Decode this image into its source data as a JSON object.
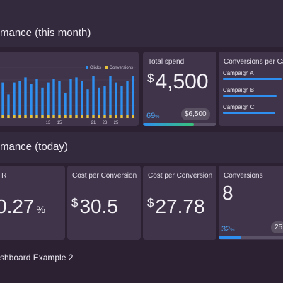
{
  "sections": {
    "month_title": "mance (this month)",
    "today_title": "mance (today)",
    "footer_title": "shboard Example 2"
  },
  "colors": {
    "clicks": "#2f8ff0",
    "conversions": "#e8c23a",
    "progress_start": "#2f8ff0",
    "progress_end": "#37c27a"
  },
  "chart_data": {
    "type": "bar",
    "legend_position": "top-right",
    "categories": [
      "",
      "",
      "",
      "",
      "",
      "",
      "",
      "",
      "13",
      "",
      "15",
      "",
      "",
      "",
      "",
      "",
      "21",
      "",
      "23",
      "",
      "25",
      "",
      "",
      ""
    ],
    "series": [
      {
        "name": "Clicks",
        "values": [
          21,
          14,
          21,
          22,
          24,
          20,
          23,
          18,
          21,
          23,
          22,
          15,
          23,
          24,
          22,
          17,
          25,
          18,
          19,
          25,
          21,
          19,
          22,
          25
        ]
      },
      {
        "name": "Conversions",
        "values": [
          2,
          2,
          2,
          2,
          2,
          2,
          2,
          2,
          2,
          2,
          2,
          2,
          2,
          2,
          2,
          2,
          2,
          2,
          2,
          2,
          2,
          2,
          2,
          2
        ]
      }
    ],
    "ylim": [
      0,
      30
    ],
    "grid": true
  },
  "total_spend": {
    "title": "Total spend",
    "currency": "$",
    "value": "4,500",
    "progress_pct": 69,
    "progress_label": "69",
    "pct_sign": "%",
    "target": "$6,500"
  },
  "conversions_per_campaign": {
    "title": "Conversions per Ca",
    "items": [
      {
        "label": "Campaign A",
        "value": 0.94
      },
      {
        "label": "Campaign B",
        "value": 0.86
      },
      {
        "label": "Campaign C",
        "value": 0.84
      }
    ]
  },
  "ctr": {
    "title": "TR",
    "value": "0.27",
    "suffix": "%"
  },
  "cost_per_conversion_1": {
    "title": "Cost per Conversion",
    "currency": "$",
    "value": "30.5"
  },
  "cost_per_conversion_2": {
    "title": "Cost per Conversion",
    "currency": "$",
    "value": "27.78"
  },
  "conversions_today": {
    "title": "Conversions",
    "value": "8",
    "progress_pct": 32,
    "progress_label": "32",
    "pct_sign": "%",
    "target": "25"
  }
}
